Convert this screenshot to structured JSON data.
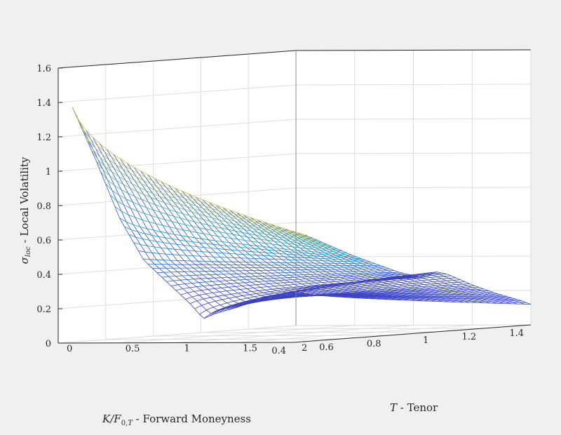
{
  "chart_data": {
    "type": "surface-mesh",
    "title": "",
    "xlabel": "K/F_{0,T} - Forward Moneyness",
    "ylabel": "T - Tenor",
    "zlabel": "σ_loc - Local Volatility",
    "xlim": [
      0.4,
      1.4
    ],
    "ylim": [
      0,
      2
    ],
    "zlim": [
      0,
      1.6
    ],
    "xticks": [
      "0.4",
      "0.6",
      "0.8",
      "1",
      "1.2",
      "1.4"
    ],
    "yticks": [
      "0",
      "0.5",
      "1",
      "1.5",
      "2"
    ],
    "zticks": [
      "0",
      "0.2",
      "0.4",
      "0.6",
      "0.8",
      "1",
      "1.2",
      "1.4",
      "1.6"
    ],
    "grid": true,
    "colormap": "parula",
    "colormap_stops": [
      "#352a87",
      "#3f46d3",
      "#1e74d8",
      "#0c9ccf",
      "#1ab1a6",
      "#65c06e",
      "#c3bd3f",
      "#f9dc24"
    ],
    "surface_profile": {
      "description_keys": [
        "moneyness",
        "vol_short_tenor",
        "vol_long_tenor"
      ],
      "moneyness": [
        0.45,
        0.55,
        0.65,
        0.75,
        0.85,
        0.95,
        1.0,
        1.05,
        1.15,
        1.25,
        1.35,
        1.4
      ],
      "vol_short_tenor": [
        1.45,
        1.1,
        0.72,
        0.45,
        0.3,
        0.15,
        0.05,
        0.08,
        0.12,
        0.18,
        0.2,
        0.2
      ],
      "vol_long_tenor": [
        0.62,
        0.55,
        0.48,
        0.42,
        0.36,
        0.32,
        0.35,
        0.33,
        0.26,
        0.2,
        0.15,
        0.12
      ]
    }
  }
}
